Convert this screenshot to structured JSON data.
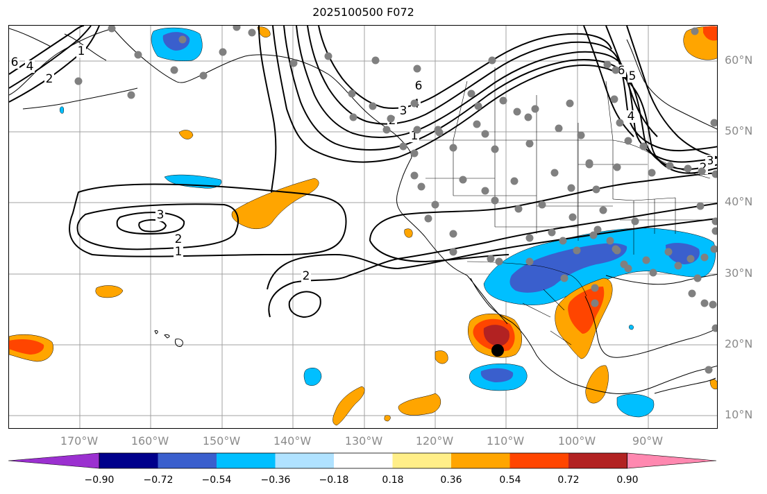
{
  "title": "2025100500 F072",
  "lat_labels": [
    "60°N",
    "50°N",
    "40°N",
    "30°N",
    "20°N",
    "10°N"
  ],
  "lon_labels": [
    "170°W",
    "160°W",
    "150°W",
    "140°W",
    "130°W",
    "120°W",
    "110°W",
    "100°W",
    "90°W"
  ],
  "contour_labels": [
    "6",
    "4",
    "2",
    "1",
    "3",
    "2",
    "1",
    "2",
    "6",
    "4",
    "3",
    "2",
    "1",
    "6",
    "5",
    "4",
    "3",
    "2"
  ],
  "colorbar": {
    "tick_labels": [
      "−0.90",
      "−0.72",
      "−0.54",
      "−0.36",
      "−0.18",
      "0.18",
      "0.36",
      "0.54",
      "0.72",
      "0.90"
    ],
    "colors": [
      "#9b30d0",
      "#00008b",
      "#3a5fcd",
      "#00bfff",
      "#b0e2ff",
      "#ffffff",
      "#ffee88",
      "#ffa500",
      "#ff4500",
      "#b22222",
      "#ff88b0"
    ]
  },
  "colors": {
    "station": "#808080",
    "marker": "#000000",
    "contour": "#000000",
    "grid": "#a0a0a0"
  }
}
